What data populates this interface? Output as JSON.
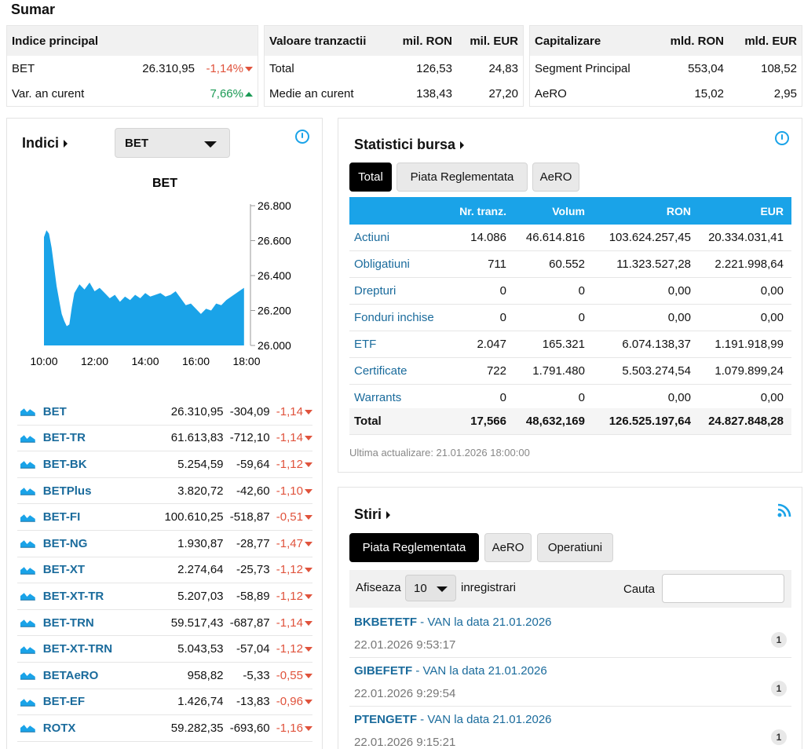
{
  "summary": {
    "title": "Sumar",
    "index_box": {
      "header": "Indice principal",
      "rows": [
        {
          "label": "BET",
          "value": "26.310,95",
          "change": "-1,14%"
        },
        {
          "label": "Var. an curent",
          "value": "",
          "change": "7,66%"
        }
      ]
    },
    "value_box": {
      "header": "Valoare tranzactii",
      "col1": "mil. RON",
      "col2": "mil. EUR",
      "rows": [
        {
          "label": "Total",
          "v1": "126,53",
          "v2": "24,83"
        },
        {
          "label": "Medie an curent",
          "v1": "138,43",
          "v2": "27,20"
        }
      ]
    },
    "cap_box": {
      "header": "Capitalizare",
      "col1": "mld. RON",
      "col2": "mld. EUR",
      "rows": [
        {
          "label": "Segment Principal",
          "v1": "553,04",
          "v2": "108,52"
        },
        {
          "label": "AeRO",
          "v1": "15,02",
          "v2": "2,95"
        }
      ]
    }
  },
  "indices": {
    "title": "Indici",
    "selected": "BET",
    "chart_data": {
      "type": "area",
      "title": "BET",
      "x_ticks": [
        "10:00",
        "12:00",
        "14:00",
        "16:00",
        "18:00"
      ],
      "y_ticks": [
        "26.000",
        "26.200",
        "26.400",
        "26.600",
        "26.800"
      ],
      "ylim": [
        26000,
        26800
      ],
      "xlim": [
        10,
        18
      ],
      "x": [
        10.0,
        10.1,
        10.2,
        10.3,
        10.4,
        10.5,
        10.6,
        10.7,
        10.8,
        10.9,
        11.0,
        11.1,
        11.2,
        11.4,
        11.6,
        11.8,
        12.0,
        12.2,
        12.4,
        12.6,
        12.8,
        13.0,
        13.2,
        13.4,
        13.6,
        13.8,
        14.0,
        14.2,
        14.4,
        14.6,
        14.8,
        15.0,
        15.2,
        15.4,
        15.6,
        15.8,
        16.0,
        16.2,
        16.4,
        16.6,
        16.8,
        17.0,
        17.2,
        17.4,
        17.6,
        17.8,
        17.9
      ],
      "y": [
        26620,
        26660,
        26640,
        26560,
        26450,
        26340,
        26260,
        26180,
        26140,
        26110,
        26120,
        26220,
        26300,
        26350,
        26320,
        26360,
        26310,
        26330,
        26300,
        26270,
        26290,
        26250,
        26280,
        26260,
        26290,
        26270,
        26300,
        26280,
        26290,
        26300,
        26280,
        26290,
        26310,
        26270,
        26230,
        26240,
        26210,
        26180,
        26210,
        26200,
        26240,
        26230,
        26260,
        26280,
        26300,
        26320,
        26330
      ],
      "color": "#1aa3e8"
    },
    "rows": [
      {
        "name": "BET",
        "value": "26.310,95",
        "abs": "-304,09",
        "pct": "-1,14"
      },
      {
        "name": "BET-TR",
        "value": "61.613,83",
        "abs": "-712,10",
        "pct": "-1,14"
      },
      {
        "name": "BET-BK",
        "value": "5.254,59",
        "abs": "-59,64",
        "pct": "-1,12"
      },
      {
        "name": "BETPlus",
        "value": "3.820,72",
        "abs": "-42,60",
        "pct": "-1,10"
      },
      {
        "name": "BET-FI",
        "value": "100.610,25",
        "abs": "-518,87",
        "pct": "-0,51"
      },
      {
        "name": "BET-NG",
        "value": "1.930,87",
        "abs": "-28,77",
        "pct": "-1,47"
      },
      {
        "name": "BET-XT",
        "value": "2.274,64",
        "abs": "-25,73",
        "pct": "-1,12"
      },
      {
        "name": "BET-XT-TR",
        "value": "5.207,03",
        "abs": "-58,89",
        "pct": "-1,12"
      },
      {
        "name": "BET-TRN",
        "value": "59.517,43",
        "abs": "-687,87",
        "pct": "-1,14"
      },
      {
        "name": "BET-XT-TRN",
        "value": "5.043,53",
        "abs": "-57,04",
        "pct": "-1,12"
      },
      {
        "name": "BETAeRO",
        "value": "958,82",
        "abs": "-5,33",
        "pct": "-0,55"
      },
      {
        "name": "BET-EF",
        "value": "1.426,74",
        "abs": "-13,83",
        "pct": "-0,96"
      },
      {
        "name": "ROTX",
        "value": "59.282,35",
        "abs": "-693,60",
        "pct": "-1,16"
      }
    ]
  },
  "stats": {
    "title": "Statistici bursa",
    "tabs": [
      "Total",
      "Piata Reglementata",
      "AeRO"
    ],
    "columns": [
      "",
      "Nr. tranz.",
      "Volum",
      "RON",
      "EUR"
    ],
    "rows": [
      {
        "name": "Actiuni",
        "n": "14.086",
        "vol": "46.614.816",
        "ron": "103.624.257,45",
        "eur": "20.334.031,41"
      },
      {
        "name": "Obligatiuni",
        "n": "711",
        "vol": "60.552",
        "ron": "11.323.527,28",
        "eur": "2.221.998,64"
      },
      {
        "name": "Drepturi",
        "n": "0",
        "vol": "0",
        "ron": "0,00",
        "eur": "0,00"
      },
      {
        "name": "Fonduri inchise",
        "n": "0",
        "vol": "0",
        "ron": "0,00",
        "eur": "0,00"
      },
      {
        "name": "ETF",
        "n": "2.047",
        "vol": "165.321",
        "ron": "6.074.138,37",
        "eur": "1.191.918,99"
      },
      {
        "name": "Certificate",
        "n": "722",
        "vol": "1.791.480",
        "ron": "5.503.274,54",
        "eur": "1.079.899,24"
      },
      {
        "name": "Warrants",
        "n": "0",
        "vol": "0",
        "ron": "0,00",
        "eur": "0,00"
      }
    ],
    "total": {
      "name": "Total",
      "n": "17,566",
      "vol": "48,632,169",
      "ron": "126.525.197,64",
      "eur": "24.827.848,28"
    },
    "updated": "Ultima actualizare: 21.01.2026 18:00:00"
  },
  "news": {
    "title": "Stiri",
    "tabs": [
      "Piata Reglementata",
      "AeRO",
      "Operatiuni"
    ],
    "show_label": "Afiseaza",
    "show_value": "10",
    "records_label": "inregistrari",
    "search_label": "Cauta",
    "items": [
      {
        "code": "BKBETETF",
        "text": " - VAN la data 21.01.2026",
        "date": "22.01.2026 9:53:17",
        "count": "1"
      },
      {
        "code": "GIBEFETF",
        "text": " - VAN la data 21.01.2026",
        "date": "22.01.2026 9:29:54",
        "count": "1"
      },
      {
        "code": "PTENGETF",
        "text": " - VAN la data 21.01.2026",
        "date": "22.01.2026 9:15:21",
        "count": "1"
      }
    ]
  }
}
